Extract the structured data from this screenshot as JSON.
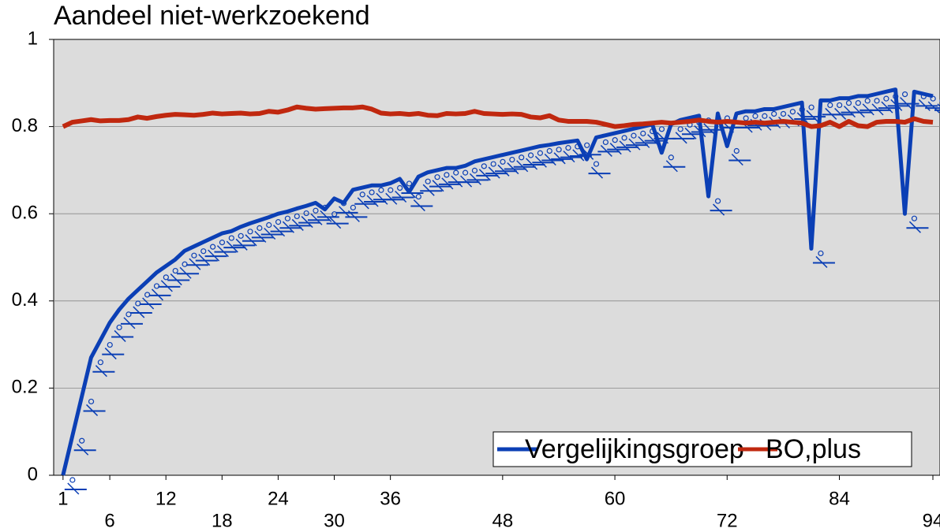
{
  "chart_data": {
    "type": "line",
    "title": "Aandeel niet-werkzoekend",
    "x": [
      1,
      2,
      3,
      4,
      5,
      6,
      7,
      8,
      9,
      10,
      11,
      12,
      13,
      14,
      15,
      16,
      17,
      18,
      19,
      20,
      21,
      22,
      23,
      24,
      25,
      26,
      27,
      28,
      29,
      30,
      31,
      32,
      33,
      34,
      35,
      36,
      37,
      38,
      39,
      40,
      41,
      42,
      43,
      44,
      45,
      46,
      47,
      48,
      49,
      50,
      51,
      52,
      53,
      54,
      55,
      56,
      57,
      58,
      59,
      60,
      61,
      62,
      63,
      64,
      65,
      66,
      67,
      68,
      69,
      70,
      71,
      72,
      73,
      74,
      75,
      76,
      77,
      78,
      79,
      80,
      81,
      82,
      83,
      84,
      85,
      86,
      87,
      88,
      89,
      90,
      91,
      92,
      93,
      94
    ],
    "series": [
      {
        "name": "Vergelijkingsgroep",
        "color": "#0b3fb5",
        "values": [
          0,
          0.09,
          0.18,
          0.27,
          0.31,
          0.35,
          0.38,
          0.405,
          0.425,
          0.445,
          0.465,
          0.48,
          0.495,
          0.515,
          0.525,
          0.535,
          0.545,
          0.555,
          0.56,
          0.57,
          0.578,
          0.585,
          0.592,
          0.6,
          0.605,
          0.612,
          0.618,
          0.625,
          0.61,
          0.635,
          0.625,
          0.655,
          0.66,
          0.665,
          0.665,
          0.67,
          0.68,
          0.65,
          0.685,
          0.695,
          0.7,
          0.705,
          0.705,
          0.71,
          0.72,
          0.725,
          0.73,
          0.735,
          0.74,
          0.745,
          0.75,
          0.755,
          0.758,
          0.762,
          0.765,
          0.768,
          0.725,
          0.775,
          0.78,
          0.785,
          0.79,
          0.795,
          0.8,
          0.805,
          0.74,
          0.805,
          0.815,
          0.82,
          0.825,
          0.64,
          0.83,
          0.755,
          0.83,
          0.835,
          0.835,
          0.84,
          0.84,
          0.845,
          0.85,
          0.855,
          0.52,
          0.86,
          0.86,
          0.865,
          0.865,
          0.87,
          0.87,
          0.875,
          0.88,
          0.885,
          0.6,
          0.88,
          0.875,
          0.87
        ]
      },
      {
        "name": "BO,plus",
        "color": "#c0280f",
        "values": [
          0.8,
          0.81,
          0.813,
          0.816,
          0.813,
          0.814,
          0.814,
          0.816,
          0.822,
          0.819,
          0.823,
          0.826,
          0.828,
          0.827,
          0.826,
          0.828,
          0.831,
          0.829,
          0.83,
          0.831,
          0.829,
          0.83,
          0.835,
          0.833,
          0.838,
          0.845,
          0.842,
          0.84,
          0.841,
          0.842,
          0.843,
          0.843,
          0.845,
          0.84,
          0.831,
          0.829,
          0.83,
          0.828,
          0.83,
          0.826,
          0.825,
          0.83,
          0.829,
          0.83,
          0.835,
          0.83,
          0.829,
          0.828,
          0.829,
          0.828,
          0.822,
          0.82,
          0.825,
          0.815,
          0.812,
          0.812,
          0.812,
          0.81,
          0.805,
          0.8,
          0.802,
          0.805,
          0.806,
          0.808,
          0.81,
          0.808,
          0.81,
          0.812,
          0.815,
          0.812,
          0.81,
          0.812,
          0.81,
          0.808,
          0.81,
          0.808,
          0.81,
          0.812,
          0.81,
          0.808,
          0.8,
          0.802,
          0.81,
          0.8,
          0.812,
          0.802,
          0.8,
          0.81,
          0.812,
          0.812,
          0.81,
          0.818,
          0.812,
          0.81
        ]
      }
    ],
    "xlim": [
      0,
      94
    ],
    "xticks": [
      1,
      6,
      12,
      18,
      24,
      30,
      36,
      48,
      60,
      72,
      84,
      94
    ],
    "ylim": [
      0,
      1
    ],
    "yticks": [
      0,
      0.2,
      0.4,
      0.6,
      0.8,
      1
    ],
    "grid": true
  }
}
